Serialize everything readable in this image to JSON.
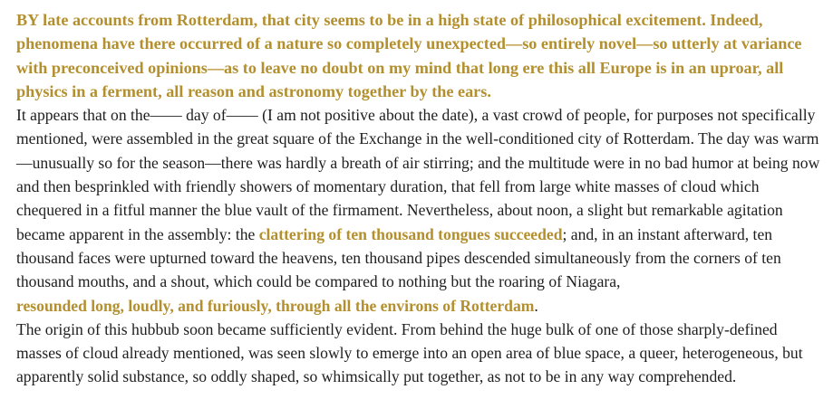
{
  "lead": {
    "text": "BY late accounts from Rotterdam, that city seems to be in a high state of philosophical excitement. Indeed, phenomena have there occurred of a nature so completely unexpected—so entirely novel—so utterly at variance with preconceived opinions—as to leave no doubt on my mind that long ere this all Europe is in an uproar, all physics in a ferment, all reason and astronomy together by the ears."
  },
  "paragraph1": {
    "part1": "It appears that on the—— day of—— (I am not positive about the date), a vast crowd of people, for purposes not specifically mentioned, were assembled in the great square of the Exchange in the well-conditioned city of Rotterdam. The day was warm—unusually so for the season—there was hardly a breath of air stirring; and the multitude were in no bad humor at being now and then besprinkled with friendly showers of momentary duration, that fell from large white masses of cloud which chequered in a fitful manner the blue vault of the firmament. Nevertheless, about noon, a slight but remarkable agitation became apparent in the assembly: the ",
    "highlight1": "clattering of ten thousand tongues succeeded",
    "part2": "; and, in an instant afterward, ten thousand faces were upturned toward the heavens, ten thousand pipes descended simultaneously from the corners of ten thousand mouths, and a shout, which could be compared to nothing but the roaring of Niagara,",
    "highlight2": "resounded long, loudly, and furiously, through all the environs of Rotterdam",
    "part3": "."
  },
  "paragraph2": {
    "text": "The origin of this hubbub soon became sufficiently evident. From behind the huge bulk of one of those sharply-defined masses of cloud already mentioned, was seen slowly to emerge into an open area of blue space, a queer, heterogeneous, but apparently solid substance, so oddly shaped, so whimsically put together, as not to be in any way comprehended."
  },
  "colors": {
    "highlight": "#b38f2e",
    "text": "#1e1e1e",
    "background": "#ffffff"
  }
}
